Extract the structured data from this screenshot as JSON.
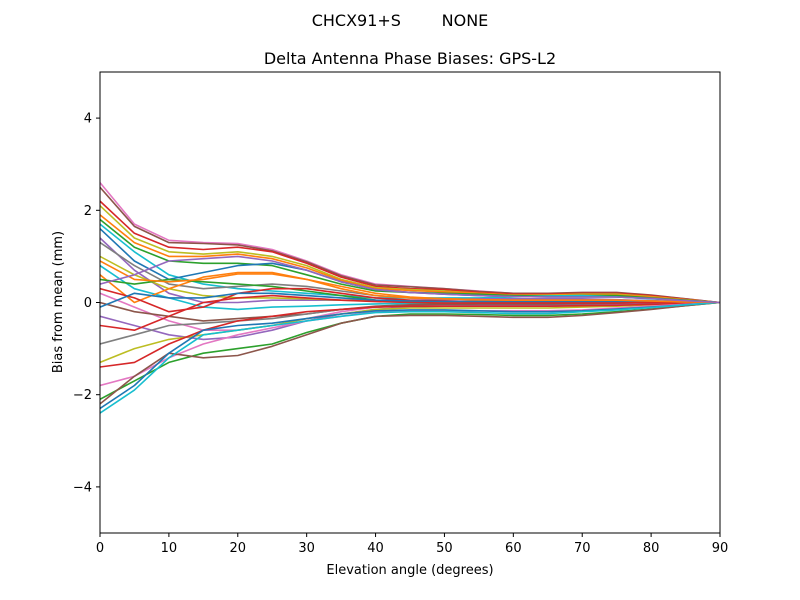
{
  "chart_data": {
    "type": "line",
    "suptitle": "CHCX91+S        NONE",
    "title": "Delta Antenna Phase Biases: GPS-L2",
    "xlabel": "Elevation angle (degrees)",
    "ylabel": "Bias from mean (mm)",
    "xlim": [
      0,
      90
    ],
    "ylim": [
      -5,
      5
    ],
    "xticks": [
      0,
      10,
      20,
      30,
      40,
      50,
      60,
      70,
      80,
      90
    ],
    "yticks": [
      -4,
      -2,
      0,
      2,
      4
    ],
    "ytick_labels": [
      "−4",
      "−2",
      "0",
      "2",
      "4"
    ],
    "grid": false,
    "legend": "none",
    "x": [
      0,
      5,
      10,
      15,
      20,
      25,
      30,
      35,
      40,
      45,
      50,
      55,
      60,
      65,
      70,
      75,
      80,
      85,
      90
    ],
    "series": [
      {
        "color": "#e377c2",
        "values": [
          2.6,
          1.7,
          1.35,
          1.3,
          1.28,
          1.15,
          0.9,
          0.6,
          0.4,
          0.35,
          0.3,
          0.25,
          0.2,
          0.18,
          0.2,
          0.2,
          0.15,
          0.08,
          0
        ]
      },
      {
        "color": "#8c564b",
        "values": [
          2.5,
          1.65,
          1.3,
          1.28,
          1.25,
          1.12,
          0.88,
          0.58,
          0.38,
          0.34,
          0.3,
          0.24,
          0.2,
          0.2,
          0.22,
          0.22,
          0.16,
          0.08,
          0
        ]
      },
      {
        "color": "#d62728",
        "values": [
          2.2,
          1.5,
          1.2,
          1.15,
          1.2,
          1.1,
          0.85,
          0.55,
          0.35,
          0.3,
          0.28,
          0.22,
          0.18,
          0.18,
          0.2,
          0.2,
          0.15,
          0.07,
          0
        ]
      },
      {
        "color": "#bcbd22",
        "values": [
          2.1,
          1.4,
          1.1,
          1.05,
          1.1,
          1.0,
          0.8,
          0.5,
          0.32,
          0.28,
          0.25,
          0.2,
          0.16,
          0.16,
          0.18,
          0.18,
          0.13,
          0.06,
          0
        ]
      },
      {
        "color": "#ff7f0e",
        "values": [
          1.9,
          1.3,
          1.0,
          1.0,
          1.05,
          0.95,
          0.75,
          0.48,
          0.3,
          0.26,
          0.23,
          0.2,
          0.16,
          0.15,
          0.16,
          0.16,
          0.12,
          0.06,
          0
        ]
      },
      {
        "color": "#2ca02c",
        "values": [
          1.8,
          1.2,
          0.9,
          0.85,
          0.85,
          0.8,
          0.6,
          0.4,
          0.25,
          0.22,
          0.2,
          0.18,
          0.15,
          0.14,
          0.15,
          0.15,
          0.1,
          0.05,
          0
        ]
      },
      {
        "color": "#17becf",
        "values": [
          1.7,
          1.1,
          0.6,
          0.4,
          0.3,
          0.25,
          0.2,
          0.15,
          0.1,
          0.1,
          0.1,
          0.1,
          0.12,
          0.14,
          0.15,
          0.12,
          0.08,
          0.04,
          0
        ]
      },
      {
        "color": "#1f77b4",
        "values": [
          1.6,
          0.9,
          0.5,
          0.65,
          0.8,
          0.85,
          0.7,
          0.45,
          0.28,
          0.22,
          0.18,
          0.15,
          0.13,
          0.12,
          0.12,
          0.12,
          0.09,
          0.04,
          0
        ]
      },
      {
        "color": "#9467bd",
        "values": [
          1.4,
          0.7,
          0.2,
          0.0,
          0.0,
          0.05,
          0.05,
          0.05,
          0.05,
          0.05,
          0.06,
          0.08,
          0.08,
          0.08,
          0.08,
          0.06,
          0.04,
          0.02,
          0
        ]
      },
      {
        "color": "#7f7f7f",
        "values": [
          1.3,
          0.8,
          0.4,
          0.3,
          0.35,
          0.4,
          0.35,
          0.25,
          0.15,
          0.1,
          0.08,
          0.06,
          0.05,
          0.05,
          0.05,
          0.05,
          0.03,
          0.01,
          0
        ]
      },
      {
        "color": "#bcbd22",
        "values": [
          1.0,
          0.6,
          0.3,
          0.15,
          0.1,
          0.1,
          0.08,
          0.05,
          0.03,
          0.02,
          0.02,
          0.02,
          0.02,
          0.02,
          0.02,
          0.02,
          0.01,
          0.0,
          0
        ]
      },
      {
        "color": "#17becf",
        "values": [
          0.8,
          0.3,
          0.1,
          -0.1,
          -0.15,
          -0.1,
          -0.08,
          -0.05,
          -0.03,
          -0.02,
          -0.02,
          -0.02,
          -0.02,
          -0.02,
          -0.02,
          -0.02,
          -0.01,
          0.0,
          0
        ]
      },
      {
        "color": "#ff7f0e",
        "values": [
          0.6,
          0.0,
          0.3,
          0.55,
          0.65,
          0.65,
          0.5,
          0.3,
          0.15,
          0.1,
          0.08,
          0.06,
          0.05,
          0.05,
          0.05,
          0.05,
          0.03,
          0.01,
          0
        ]
      },
      {
        "color": "#2ca02c",
        "values": [
          0.5,
          0.4,
          0.5,
          0.45,
          0.4,
          0.35,
          0.25,
          0.15,
          0.05,
          0.0,
          -0.02,
          -0.03,
          -0.03,
          -0.02,
          -0.02,
          -0.02,
          -0.01,
          0.0,
          0
        ]
      },
      {
        "color": "#d62728",
        "values": [
          0.3,
          0.1,
          -0.2,
          -0.1,
          0.2,
          0.3,
          0.3,
          0.2,
          0.1,
          0.05,
          0.03,
          0.02,
          0.02,
          0.02,
          0.02,
          0.02,
          0.01,
          0.0,
          0
        ]
      },
      {
        "color": "#e377c2",
        "values": [
          0.2,
          -0.1,
          -0.4,
          -0.6,
          -0.6,
          -0.5,
          -0.35,
          -0.2,
          -0.1,
          -0.06,
          -0.05,
          -0.05,
          -0.05,
          -0.05,
          -0.05,
          -0.04,
          -0.02,
          -0.01,
          0
        ]
      },
      {
        "color": "#8c564b",
        "values": [
          0.0,
          -0.2,
          -0.3,
          -0.4,
          -0.35,
          -0.3,
          -0.25,
          -0.15,
          -0.08,
          -0.05,
          -0.04,
          -0.04,
          -0.04,
          -0.04,
          -0.04,
          -0.03,
          -0.02,
          -0.01,
          0
        ]
      },
      {
        "color": "#1f77b4",
        "values": [
          -0.1,
          0.2,
          0.1,
          0.1,
          0.2,
          0.2,
          0.15,
          0.1,
          0.05,
          0.03,
          0.02,
          0.02,
          0.02,
          0.02,
          0.02,
          0.02,
          0.01,
          0.0,
          0
        ]
      },
      {
        "color": "#9467bd",
        "values": [
          -0.3,
          -0.5,
          -0.7,
          -0.8,
          -0.75,
          -0.6,
          -0.4,
          -0.25,
          -0.15,
          -0.1,
          -0.08,
          -0.07,
          -0.07,
          -0.07,
          -0.06,
          -0.05,
          -0.03,
          -0.01,
          0
        ]
      },
      {
        "color": "#d62728",
        "values": [
          -0.5,
          -0.6,
          -0.3,
          0.0,
          0.1,
          0.15,
          0.1,
          0.05,
          0.02,
          0.0,
          -0.01,
          -0.01,
          -0.01,
          -0.01,
          -0.01,
          -0.01,
          0.0,
          0.0,
          0
        ]
      },
      {
        "color": "#7f7f7f",
        "values": [
          -0.9,
          -0.7,
          -0.5,
          -0.45,
          -0.4,
          -0.35,
          -0.25,
          -0.15,
          -0.1,
          -0.08,
          -0.08,
          -0.08,
          -0.08,
          -0.08,
          -0.07,
          -0.06,
          -0.04,
          -0.02,
          0
        ]
      },
      {
        "color": "#bcbd22",
        "values": [
          -1.3,
          -1.0,
          -0.8,
          -0.7,
          -0.6,
          -0.5,
          -0.35,
          -0.25,
          -0.15,
          -0.12,
          -0.12,
          -0.12,
          -0.12,
          -0.12,
          -0.1,
          -0.08,
          -0.05,
          -0.02,
          0
        ]
      },
      {
        "color": "#d62728",
        "values": [
          -1.4,
          -1.3,
          -0.9,
          -0.6,
          -0.4,
          -0.3,
          -0.2,
          -0.15,
          -0.1,
          -0.08,
          -0.08,
          -0.08,
          -0.08,
          -0.08,
          -0.07,
          -0.06,
          -0.04,
          -0.02,
          0
        ]
      },
      {
        "color": "#e377c2",
        "values": [
          -1.8,
          -1.6,
          -1.2,
          -0.9,
          -0.7,
          -0.55,
          -0.4,
          -0.3,
          -0.2,
          -0.18,
          -0.18,
          -0.18,
          -0.18,
          -0.18,
          -0.16,
          -0.12,
          -0.08,
          -0.04,
          0
        ]
      },
      {
        "color": "#2ca02c",
        "values": [
          -2.1,
          -1.7,
          -1.3,
          -1.1,
          -1.0,
          -0.9,
          -0.65,
          -0.45,
          -0.3,
          -0.25,
          -0.25,
          -0.26,
          -0.28,
          -0.28,
          -0.25,
          -0.2,
          -0.14,
          -0.07,
          0
        ]
      },
      {
        "color": "#8c564b",
        "values": [
          -2.2,
          -1.6,
          -1.1,
          -1.2,
          -1.15,
          -0.95,
          -0.7,
          -0.45,
          -0.3,
          -0.28,
          -0.28,
          -0.3,
          -0.32,
          -0.32,
          -0.28,
          -0.22,
          -0.15,
          -0.07,
          0
        ]
      },
      {
        "color": "#1f77b4",
        "values": [
          -2.3,
          -1.8,
          -1.1,
          -0.6,
          -0.5,
          -0.45,
          -0.35,
          -0.25,
          -0.18,
          -0.16,
          -0.16,
          -0.18,
          -0.2,
          -0.2,
          -0.18,
          -0.14,
          -0.1,
          -0.05,
          0
        ]
      },
      {
        "color": "#17becf",
        "values": [
          -2.4,
          -1.9,
          -1.2,
          -0.7,
          -0.6,
          -0.5,
          -0.4,
          -0.3,
          -0.22,
          -0.2,
          -0.2,
          -0.22,
          -0.24,
          -0.24,
          -0.2,
          -0.16,
          -0.11,
          -0.05,
          0
        ]
      },
      {
        "color": "#ff7f0e",
        "values": [
          0.9,
          0.5,
          0.45,
          0.5,
          0.62,
          0.62,
          0.5,
          0.35,
          0.2,
          0.12,
          0.08,
          0.06,
          0.05,
          0.05,
          0.05,
          0.05,
          0.03,
          0.01,
          0
        ]
      },
      {
        "color": "#9467bd",
        "values": [
          0.4,
          0.6,
          0.9,
          0.95,
          1.0,
          0.9,
          0.7,
          0.45,
          0.28,
          0.22,
          0.18,
          0.15,
          0.13,
          0.12,
          0.12,
          0.12,
          0.09,
          0.04,
          0
        ]
      }
    ]
  }
}
